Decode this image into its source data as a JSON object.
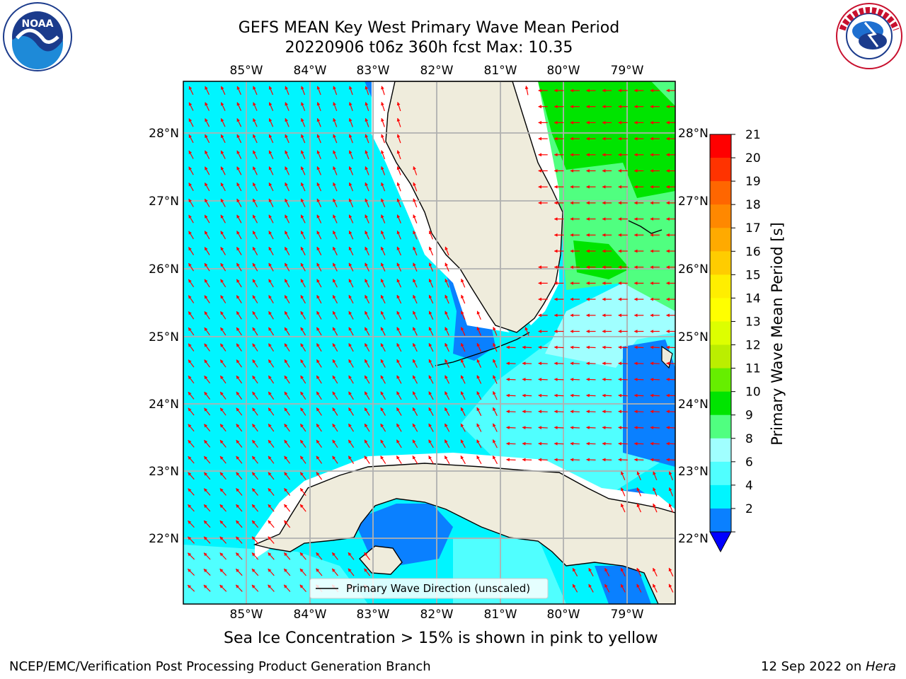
{
  "title": {
    "line1": "GEFS MEAN Key West Primary Wave Mean Period",
    "line2": "20220906 t06z 360h fcst   Max: 10.35"
  },
  "logos": {
    "left": {
      "name": "noaa-logo",
      "text": "NOAA",
      "ring_text": "NATIONAL OCEANIC AND ATMOSPHERIC ADMINISTRATION · U.S. DEPARTMENT OF COMMERCE"
    },
    "right": {
      "name": "nws-logo",
      "ring_text": "NATIONAL WEATHER SERVICE"
    }
  },
  "map": {
    "lon_labels": [
      "85°W",
      "84°W",
      "83°W",
      "82°W",
      "81°W",
      "80°W",
      "79°W"
    ],
    "lat_labels": [
      "28°N",
      "27°N",
      "26°N",
      "25°N",
      "24°N",
      "23°N",
      "22°N"
    ],
    "legend_label": "Primary Wave Direction (unscaled)",
    "colors": {
      "land": "#efecdc",
      "c2_4": "#0a80ff",
      "c4_6": "#00f5ff",
      "c6_8": "#50ffff",
      "c8_9": "#a0ffff",
      "c9_10": "#50ff80",
      "c10_11": "#00e400",
      "arrow": "#ff0000",
      "grid": "#b0b0b0"
    }
  },
  "colorbar": {
    "label": "Primary Wave Mean Period [s]",
    "ticks": [
      "21",
      "20",
      "19",
      "18",
      "17",
      "16",
      "15",
      "14",
      "13",
      "12",
      "11",
      "10",
      "9",
      "8",
      "6",
      "4",
      "2"
    ],
    "colors": [
      "#ff0000",
      "#ff3300",
      "#ff6600",
      "#ff8800",
      "#ffaa00",
      "#ffcc00",
      "#ffee00",
      "#ffff00",
      "#ddff00",
      "#bbee00",
      "#66ee00",
      "#00e400",
      "#50ff80",
      "#a0ffff",
      "#50ffff",
      "#00f5ff",
      "#0a80ff"
    ],
    "extend_color": "#0000ff"
  },
  "bottom_note": "Sea Ice Concentration > 15% is shown in pink to yellow",
  "footer": {
    "left": "NCEP/EMC/Verification Post Processing Product Generation Branch",
    "right_prefix": "12 Sep 2022 on ",
    "right_host": "Hera"
  }
}
